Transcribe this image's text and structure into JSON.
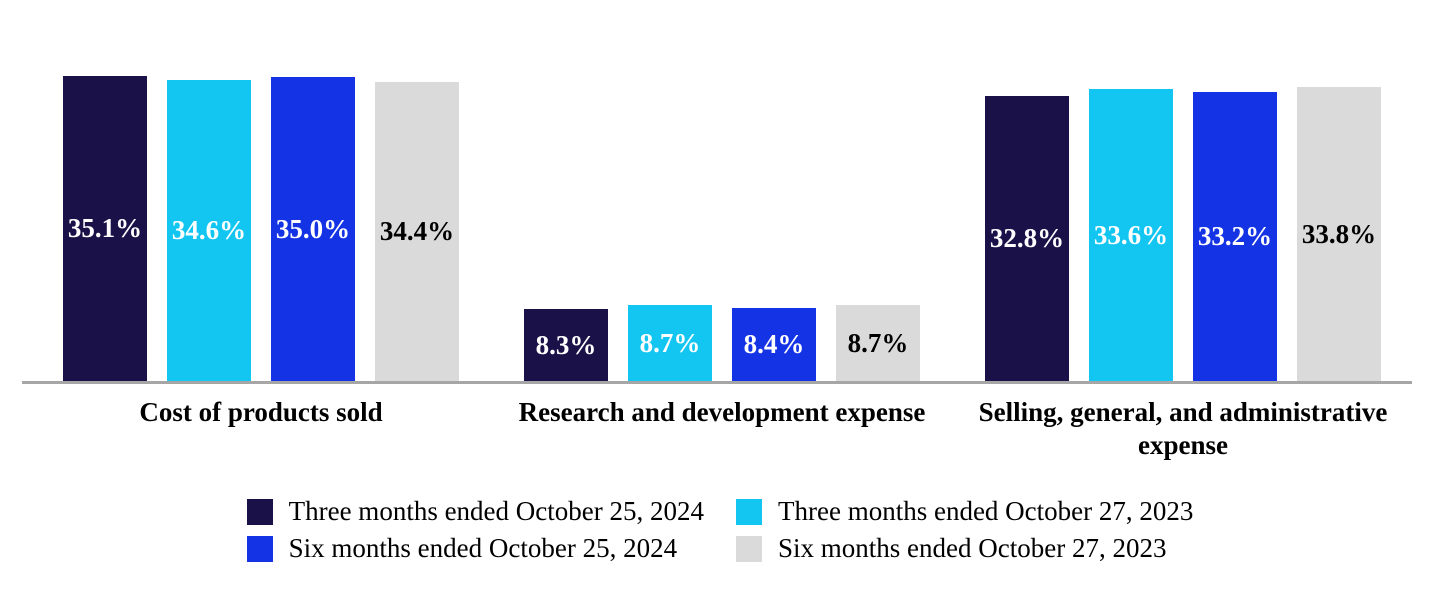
{
  "chart_data": {
    "type": "bar",
    "title": "",
    "categories": [
      "Cost of products sold",
      "Research and development expense",
      "Selling, general, and administrative expense"
    ],
    "series": [
      {
        "name": "Three months ended October 25, 2024",
        "color": "#1A1148",
        "label_color": "#FFFFFF",
        "values": [
          35.1,
          8.3,
          32.8
        ],
        "labels": [
          "35.1%",
          "8.3%",
          "32.8%"
        ]
      },
      {
        "name": "Three months ended October 27, 2023",
        "color": "#13C6F2",
        "label_color": "#FFFFFF",
        "values": [
          34.6,
          8.7,
          33.6
        ],
        "labels": [
          "34.6%",
          "8.7%",
          "33.6%"
        ]
      },
      {
        "name": "Six months ended October 25, 2024",
        "color": "#1433E5",
        "label_color": "#FFFFFF",
        "values": [
          35.0,
          8.4,
          33.2
        ],
        "labels": [
          "35.0%",
          "8.4%",
          "33.2%"
        ]
      },
      {
        "name": "Six months ended October 27, 2023",
        "color": "#DADADA",
        "label_color": "#000000",
        "values": [
          34.4,
          8.7,
          33.8
        ],
        "labels": [
          "34.4%",
          "8.7%",
          "33.8%"
        ]
      }
    ],
    "value_format": "percent",
    "ylim": [
      0,
      36
    ],
    "grid": false,
    "axis_labels_visible": false,
    "legend_position": "bottom-center",
    "legend_layout": "2x2"
  },
  "colors": {
    "background": "#FFFFFF",
    "axis_line": "#A6A6A6",
    "category_text": "#000000",
    "legend_text": "#000000"
  }
}
